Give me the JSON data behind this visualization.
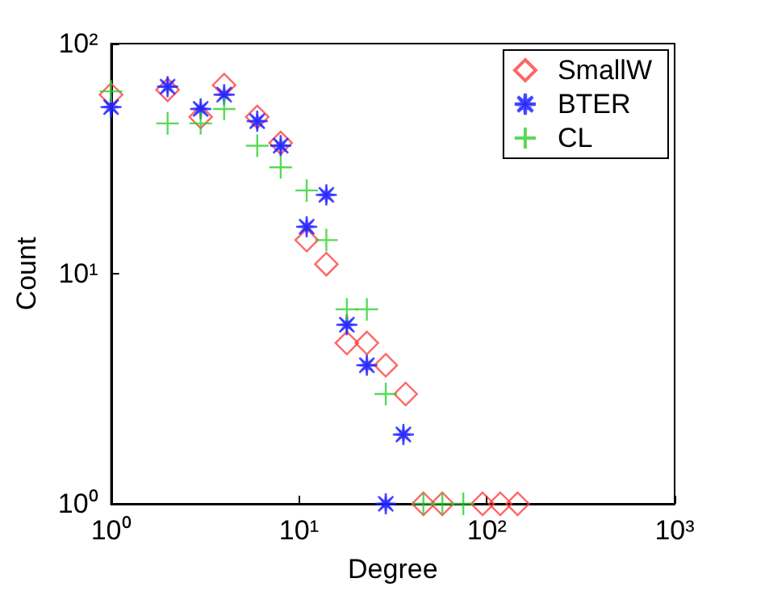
{
  "chart_data": {
    "type": "scatter",
    "xlabel": "Degree",
    "ylabel": "Count",
    "log": "xy",
    "grid": false,
    "legend": "top right",
    "xlim": [
      1,
      1000
    ],
    "ylim": [
      1,
      100
    ],
    "xticks": [
      {
        "value": 1,
        "label": "10⁰"
      },
      {
        "value": 10,
        "label": "10¹"
      },
      {
        "value": 100,
        "label": "10²"
      },
      {
        "value": 1000,
        "label": "10³"
      }
    ],
    "yticks": [
      {
        "value": 1,
        "label": "10⁰"
      },
      {
        "value": 10,
        "label": "10¹"
      },
      {
        "value": 100,
        "label": "10²"
      }
    ],
    "series": [
      {
        "name": "SmallW",
        "color": "#ff4040",
        "marker": "diamond",
        "x": [
          1,
          2,
          3,
          4,
          6,
          8,
          11,
          14,
          18,
          23,
          29,
          37,
          46,
          58,
          95,
          118,
          146
        ],
        "values": [
          60,
          63,
          48,
          66,
          48,
          37,
          14,
          11,
          5,
          5,
          4,
          3,
          1,
          1,
          1,
          1,
          1
        ]
      },
      {
        "name": "BTER",
        "color": "#2020ff",
        "marker": "star",
        "x": [
          1,
          2,
          3,
          4,
          6,
          8,
          11,
          14,
          18,
          23,
          29,
          36
        ],
        "values": [
          53,
          65,
          52,
          60,
          46,
          36,
          16,
          22,
          6,
          4,
          1,
          2
        ]
      },
      {
        "name": "CL",
        "color": "#30d030",
        "marker": "cross",
        "x": [
          1,
          2,
          3,
          4,
          6,
          8,
          11,
          14,
          18,
          23,
          29,
          46,
          58,
          75
        ],
        "values": [
          62,
          45,
          45,
          52,
          36,
          29,
          23,
          14,
          7,
          7,
          3,
          1,
          1,
          1
        ]
      }
    ]
  }
}
